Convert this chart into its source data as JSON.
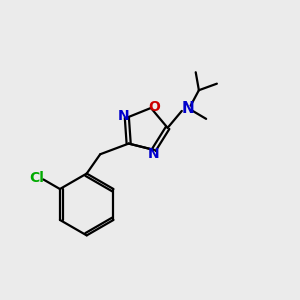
{
  "bg_color": "#ebebeb",
  "bond_color": "#000000",
  "N_color": "#0000cc",
  "O_color": "#cc0000",
  "Cl_color": "#00aa00",
  "line_width": 1.6,
  "font_size": 10,
  "fig_width": 3.0,
  "fig_height": 3.0,
  "dpi": 100,
  "xlim": [
    0,
    10
  ],
  "ylim": [
    0,
    10
  ]
}
